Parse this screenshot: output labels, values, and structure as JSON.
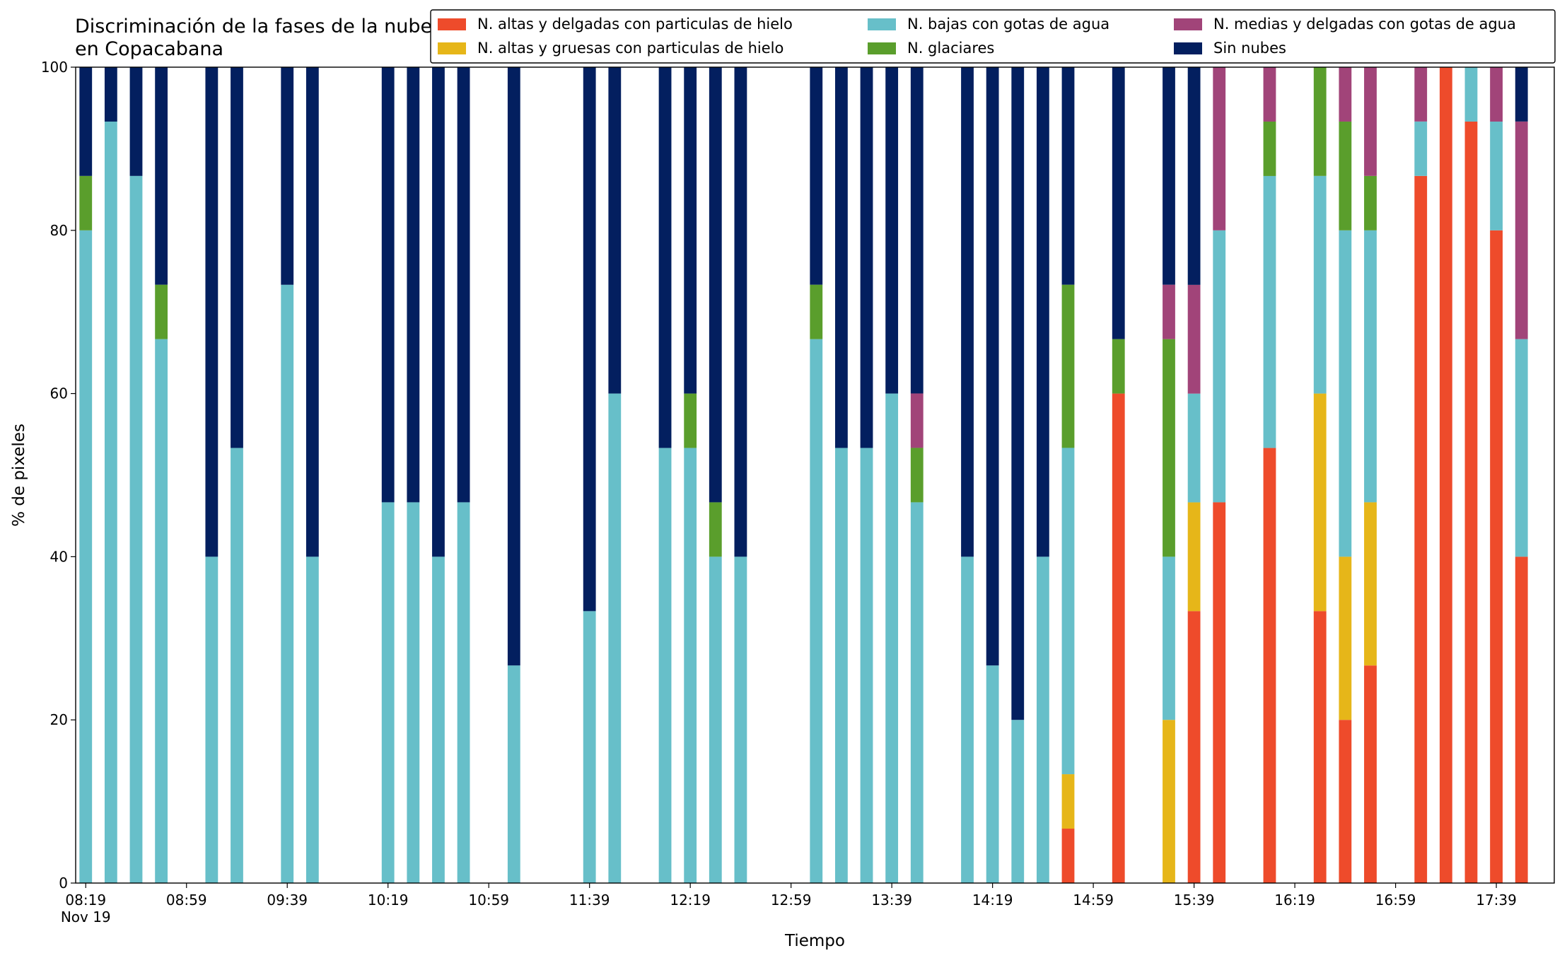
{
  "chart_data": {
    "type": "stacked_bar",
    "title": "Discriminación de la fases de la nube en Copacabana",
    "xlabel": "Tiempo",
    "ylabel": "% de pixeles",
    "x_date_label": "Nov 19",
    "x": [
      "08:19",
      "08:29",
      "08:39",
      "08:49",
      "09:09",
      "09:19",
      "09:39",
      "09:49",
      "10:19",
      "10:29",
      "10:39",
      "10:49",
      "11:09",
      "11:39",
      "11:49",
      "12:09",
      "12:19",
      "12:29",
      "12:39",
      "13:09",
      "13:19",
      "13:29",
      "13:39",
      "13:49",
      "14:09",
      "14:19",
      "14:29",
      "14:39",
      "14:49",
      "15:09",
      "15:29",
      "15:39",
      "15:49",
      "16:09",
      "16:29",
      "16:39",
      "16:49",
      "17:09",
      "17:19",
      "17:29",
      "17:39",
      "17:49"
    ],
    "xlim": [
      "08:15",
      "18:02"
    ],
    "xticks": [
      "08:19",
      "08:59",
      "09:39",
      "10:19",
      "10:59",
      "11:39",
      "12:19",
      "12:59",
      "13:39",
      "14:19",
      "14:59",
      "15:39",
      "16:19",
      "16:59",
      "17:39"
    ],
    "ylim": [
      0,
      100
    ],
    "yticks": [
      0,
      20,
      40,
      60,
      80,
      100
    ],
    "legend": "upper right",
    "series": [
      {
        "name": "N. altas y delgadas con particulas de hielo",
        "color": "#ee4b2b",
        "values": [
          0,
          0,
          0,
          0,
          0,
          0,
          0,
          0,
          0,
          0,
          0,
          0,
          0,
          0,
          0,
          0,
          0,
          0,
          0,
          0,
          0,
          0,
          0,
          0,
          0,
          0,
          0,
          0,
          6.67,
          60,
          0,
          33.33,
          46.67,
          53.33,
          33.33,
          20,
          26.67,
          86.67,
          100,
          93.33,
          80,
          40
        ]
      },
      {
        "name": "N. altas y gruesas con particulas de hielo",
        "color": "#e6b619",
        "values": [
          0,
          0,
          0,
          0,
          0,
          0,
          0,
          0,
          0,
          0,
          0,
          0,
          0,
          0,
          0,
          0,
          0,
          0,
          0,
          0,
          0,
          0,
          0,
          0,
          0,
          0,
          0,
          0,
          6.67,
          0,
          20,
          13.33,
          0,
          0,
          26.67,
          20,
          20,
          0,
          0,
          0,
          0,
          0
        ]
      },
      {
        "name": "N. bajas con gotas de agua",
        "color": "#67bfc9",
        "values": [
          80,
          93.33,
          86.67,
          66.67,
          40,
          53.33,
          73.33,
          40,
          46.67,
          46.67,
          40,
          46.67,
          26.67,
          33.33,
          60,
          53.33,
          53.33,
          40,
          40,
          66.67,
          53.33,
          53.33,
          60,
          46.67,
          40,
          26.67,
          20,
          40,
          40,
          0,
          20,
          13.33,
          33.33,
          33.33,
          26.67,
          40,
          33.33,
          6.67,
          0,
          6.67,
          13.33,
          26.67
        ]
      },
      {
        "name": "N. glaciares",
        "color": "#5a9e2c",
        "values": [
          6.67,
          0,
          0,
          6.67,
          0,
          0,
          0,
          0,
          0,
          0,
          0,
          0,
          0,
          0,
          0,
          0,
          6.67,
          6.67,
          0,
          6.67,
          0,
          0,
          0,
          6.67,
          0,
          0,
          0,
          0,
          20,
          6.67,
          26.67,
          0,
          0,
          6.67,
          13.33,
          13.33,
          6.67,
          0,
          0,
          0,
          0,
          0
        ]
      },
      {
        "name": "N. medias y delgadas con gotas de agua",
        "color": "#a14479",
        "values": [
          0,
          0,
          0,
          0,
          0,
          0,
          0,
          0,
          0,
          0,
          0,
          0,
          0,
          0,
          0,
          0,
          0,
          0,
          0,
          0,
          0,
          0,
          0,
          6.67,
          0,
          0,
          0,
          0,
          0,
          0,
          6.67,
          13.33,
          20,
          6.67,
          0,
          6.67,
          13.33,
          6.67,
          0,
          0,
          6.67,
          26.67
        ]
      },
      {
        "name": "Sin nubes",
        "color": "#031f5f",
        "values": [
          13.33,
          6.67,
          13.33,
          26.67,
          60,
          46.67,
          26.67,
          60,
          53.33,
          53.33,
          60,
          53.33,
          73.33,
          66.67,
          40,
          46.67,
          40,
          53.33,
          60,
          26.67,
          46.67,
          46.67,
          40,
          40,
          60,
          73.33,
          80,
          60,
          26.67,
          33.33,
          26.67,
          26.67,
          0,
          0,
          0,
          0,
          0,
          0,
          0,
          0,
          0,
          6.67
        ]
      }
    ]
  }
}
